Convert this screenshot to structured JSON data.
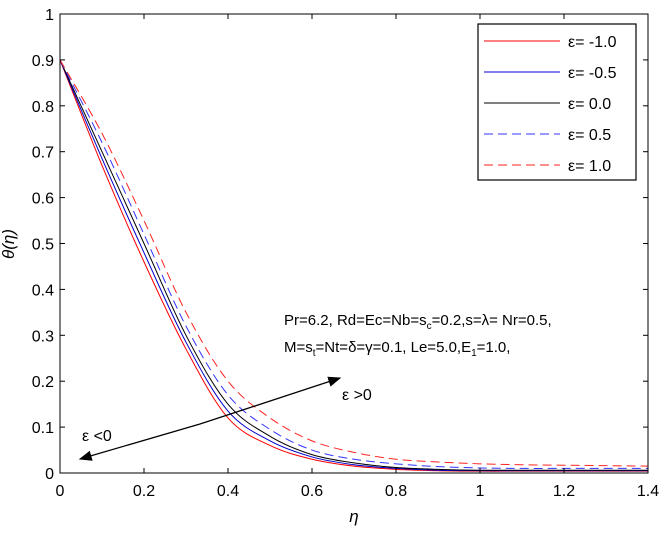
{
  "chart_data": {
    "type": "line",
    "title": "",
    "xlabel": "η",
    "ylabel": "θ(η)",
    "xlim": [
      0,
      1.4
    ],
    "ylim": [
      0,
      1
    ],
    "grid": false,
    "legend_position": "top-right",
    "xticks": [
      "0",
      "0.2",
      "0.4",
      "0.6",
      "0.8",
      "1",
      "1.2",
      "1.4"
    ],
    "xtick_values": [
      0,
      0.2,
      0.4,
      0.6,
      0.8,
      1,
      1.2,
      1.4
    ],
    "yticks": [
      "0",
      "0.1",
      "0.2",
      "0.3",
      "0.4",
      "0.5",
      "0.6",
      "0.7",
      "0.8",
      "0.9",
      "1"
    ],
    "ytick_values": [
      0,
      0.1,
      0.2,
      0.3,
      0.4,
      0.5,
      0.6,
      0.7,
      0.8,
      0.9,
      1
    ],
    "x": [
      0,
      0.1,
      0.2,
      0.3,
      0.4,
      0.5,
      0.6,
      0.7,
      0.8,
      0.9,
      1.0,
      1.1,
      1.2,
      1.3,
      1.4
    ],
    "series": [
      {
        "name": "ε= -1.0",
        "color": "#ff0000",
        "dash": "solid",
        "values": [
          0.9,
          0.67,
          0.46,
          0.27,
          0.12,
          0.06,
          0.03,
          0.015,
          0.008,
          0.005,
          0.004,
          0.004,
          0.004,
          0.004,
          0.004
        ]
      },
      {
        "name": "ε= -0.5",
        "color": "#0000cc",
        "dash": "solid",
        "values": [
          0.9,
          0.685,
          0.48,
          0.285,
          0.135,
          0.07,
          0.035,
          0.018,
          0.01,
          0.006,
          0.005,
          0.005,
          0.005,
          0.005,
          0.005
        ]
      },
      {
        "name": "ε= 0.0",
        "color": "#000000",
        "dash": "solid",
        "values": [
          0.9,
          0.7,
          0.5,
          0.3,
          0.15,
          0.08,
          0.04,
          0.022,
          0.012,
          0.008,
          0.006,
          0.006,
          0.006,
          0.006,
          0.006
        ]
      },
      {
        "name": "ε= 0.5",
        "color": "#3333ff",
        "dash": "dashed",
        "values": [
          0.9,
          0.72,
          0.52,
          0.32,
          0.17,
          0.095,
          0.05,
          0.03,
          0.02,
          0.014,
          0.011,
          0.01,
          0.01,
          0.01,
          0.01
        ]
      },
      {
        "name": "ε= 1.0",
        "color": "#ff2222",
        "dash": "dashed",
        "values": [
          0.9,
          0.74,
          0.55,
          0.35,
          0.2,
          0.12,
          0.07,
          0.045,
          0.03,
          0.024,
          0.02,
          0.018,
          0.017,
          0.016,
          0.015
        ]
      }
    ],
    "annotations": {
      "params_line1": "Pr=6.2, Rd=Ec=Nb=s_c=0.2,s=λ= Nr=0.5,",
      "params_line2": "M=s_t=Nt=δ=γ=0.1, Le=5.0,E_1=1.0,",
      "eps_neg": "ε <0",
      "eps_pos": "ε >0"
    }
  }
}
